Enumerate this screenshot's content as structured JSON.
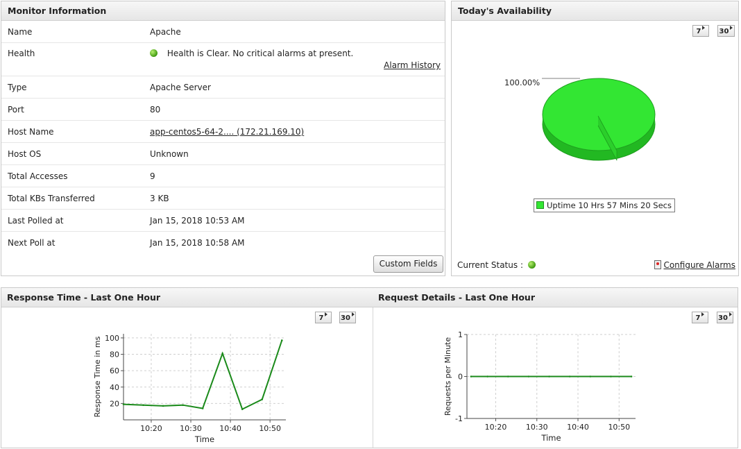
{
  "monitor": {
    "title": "Monitor Information",
    "rows": [
      {
        "label": "Name",
        "value": "Apache"
      },
      {
        "label": "Health",
        "value": "Health is Clear. No critical alarms at present."
      },
      {
        "label": "Type",
        "value": "Apache Server"
      },
      {
        "label": "Port",
        "value": "80"
      },
      {
        "label": "Host Name",
        "value": "app-centos5-64-2.... (172.21.169.10)"
      },
      {
        "label": "Host OS",
        "value": "Unknown"
      },
      {
        "label": "Total Accesses",
        "value": "9"
      },
      {
        "label": "Total KBs Transferred",
        "value": "3 KB"
      },
      {
        "label": "Last Polled at",
        "value": "Jan 15, 2018 10:53 AM"
      },
      {
        "label": "Next Poll at",
        "value": "Jan 15, 2018 10:58 AM"
      }
    ],
    "alarm_history": "Alarm History",
    "custom_fields": "Custom Fields"
  },
  "availability": {
    "title": "Today's Availability",
    "period_7": "7",
    "period_30": "30",
    "legend": "Uptime 10 Hrs 57 Mins 20 Secs",
    "current_status": "Current Status :",
    "configure_alarms": "Configure Alarms",
    "colors": {
      "uptime": "#33e633"
    }
  },
  "response": {
    "title": "Response Time - Last One Hour",
    "period_7": "7",
    "period_30": "30"
  },
  "request": {
    "title": "Request Details - Last One Hour",
    "period_7": "7",
    "period_30": "30"
  },
  "chart_data": [
    {
      "type": "pie",
      "categories": [
        "Uptime 10 Hrs 57 Mins 20 Secs"
      ],
      "values": [
        100.0
      ],
      "labels": [
        "100.00%"
      ]
    },
    {
      "type": "line",
      "xlabel": "Time",
      "ylabel": "Response Time in ms",
      "x_ticks": [
        "10:20",
        "10:30",
        "10:40",
        "10:50"
      ],
      "y_ticks": [
        20,
        40,
        60,
        80,
        100
      ],
      "ylim": [
        0,
        105
      ],
      "xlim": [
        "10:13",
        "10:54"
      ],
      "grid": true,
      "series": [
        {
          "color": "#1a8a1a",
          "x": [
            "10:13",
            "10:18",
            "10:23",
            "10:28",
            "10:33",
            "10:38",
            "10:43",
            "10:48",
            "10:53"
          ],
          "y": [
            19,
            18,
            17,
            18,
            14,
            81,
            13,
            25,
            97
          ]
        }
      ]
    },
    {
      "type": "line",
      "xlabel": "Time",
      "ylabel": "Requests per Minute",
      "x_ticks": [
        "10:20",
        "10:30",
        "10:40",
        "10:50"
      ],
      "y_ticks": [
        -1,
        0,
        1
      ],
      "ylim": [
        -1,
        1
      ],
      "xlim": [
        "10:13",
        "10:54"
      ],
      "grid": true,
      "series": [
        {
          "color": "#1a8a1a",
          "x": [
            "10:14",
            "10:18",
            "10:23",
            "10:28",
            "10:33",
            "10:38",
            "10:43",
            "10:48",
            "10:53"
          ],
          "y": [
            0,
            0,
            0,
            0,
            0,
            0,
            0,
            0,
            0
          ]
        }
      ]
    }
  ]
}
